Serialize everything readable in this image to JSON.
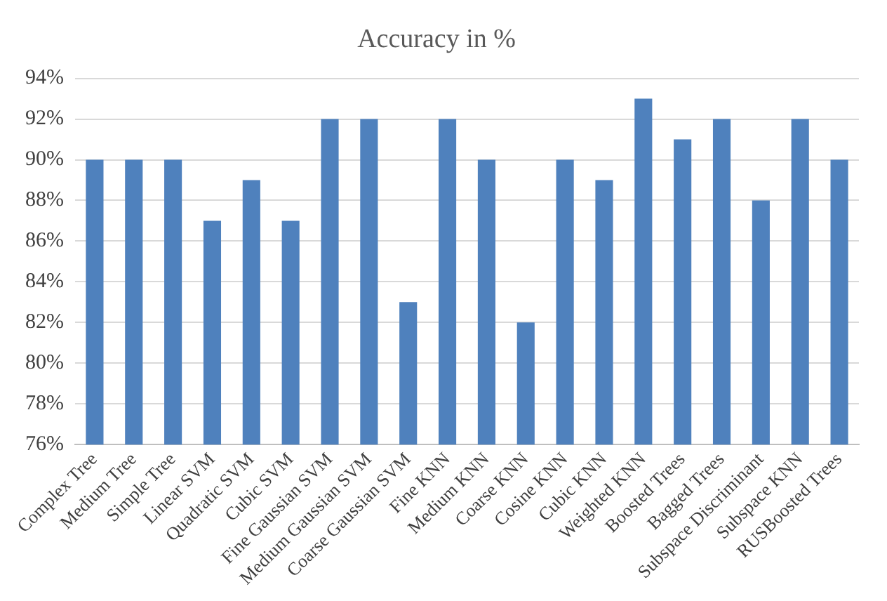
{
  "chart_data": {
    "type": "bar",
    "title": "Accuracy in %",
    "categories": [
      "Complex Tree",
      "Medium Tree",
      "Simple Tree",
      "Linear SVM",
      "Quadratic SVM",
      "Cubic SVM",
      "Fine Gaussian SVM",
      "Medium Gaussian SVM",
      "Coarse Gaussian SVM",
      "Fine KNN",
      "Medium KNN",
      "Coarse KNN",
      "Cosine KNN",
      "Cubic KNN",
      "Weighted KNN",
      "Boosted Trees",
      "Bagged Trees",
      "Subspace Discriminant",
      "Subspace KNN",
      "RUSBoosted Trees"
    ],
    "values": [
      90,
      90,
      90,
      87,
      89,
      87,
      92,
      92,
      83,
      92,
      90,
      82,
      90,
      89,
      93,
      91,
      92,
      88,
      92,
      90
    ],
    "color": "#4f81bd",
    "ylim": [
      76,
      94
    ],
    "yticks": [
      {
        "value": 76,
        "label": "76%"
      },
      {
        "value": 78,
        "label": "78%"
      },
      {
        "value": 80,
        "label": "80%"
      },
      {
        "value": 82,
        "label": "82%"
      },
      {
        "value": 84,
        "label": "84%"
      },
      {
        "value": 86,
        "label": "86%"
      },
      {
        "value": 88,
        "label": "88%"
      },
      {
        "value": 90,
        "label": "90%"
      },
      {
        "value": 92,
        "label": "92%"
      },
      {
        "value": 94,
        "label": "94%"
      }
    ],
    "grid": "y",
    "legend": false
  }
}
